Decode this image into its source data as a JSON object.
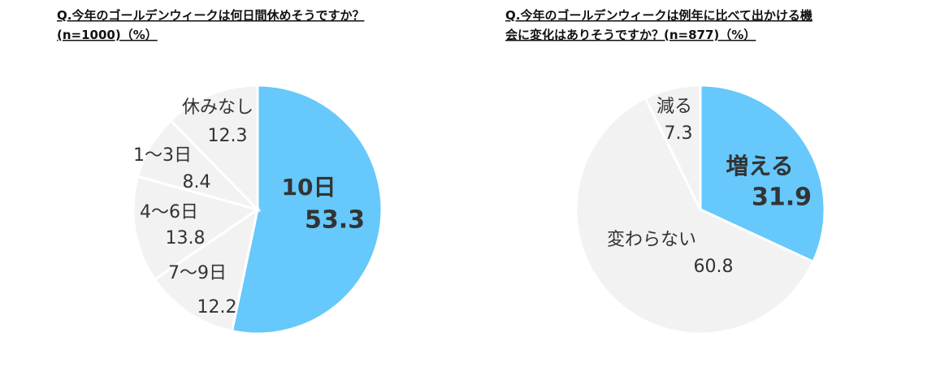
{
  "chart_data": [
    {
      "type": "pie",
      "title": [
        "Q.今年のゴールデンウィークは何日間休めそうですか？",
        "(n=1000)（%）"
      ],
      "categories": [
        "10日",
        "7〜9日",
        "4〜6日",
        "1〜3日",
        "休みなし"
      ],
      "values": [
        53.3,
        12.2,
        13.8,
        8.4,
        12.3
      ],
      "colors": [
        "#66c8fb",
        "#f2f2f2",
        "#f2f2f2",
        "#f2f2f2",
        "#f2f2f2"
      ]
    },
    {
      "type": "pie",
      "title": [
        "Q.今年のゴールデンウィークは例年に比べて出かける機",
        "会に変化はありそうですか？(n=877)（%）"
      ],
      "categories": [
        "増える",
        "変わらない",
        "減る"
      ],
      "values": [
        31.9,
        60.8,
        7.3
      ],
      "colors": [
        "#66c8fb",
        "#f2f2f2",
        "#f2f2f2"
      ]
    }
  ]
}
